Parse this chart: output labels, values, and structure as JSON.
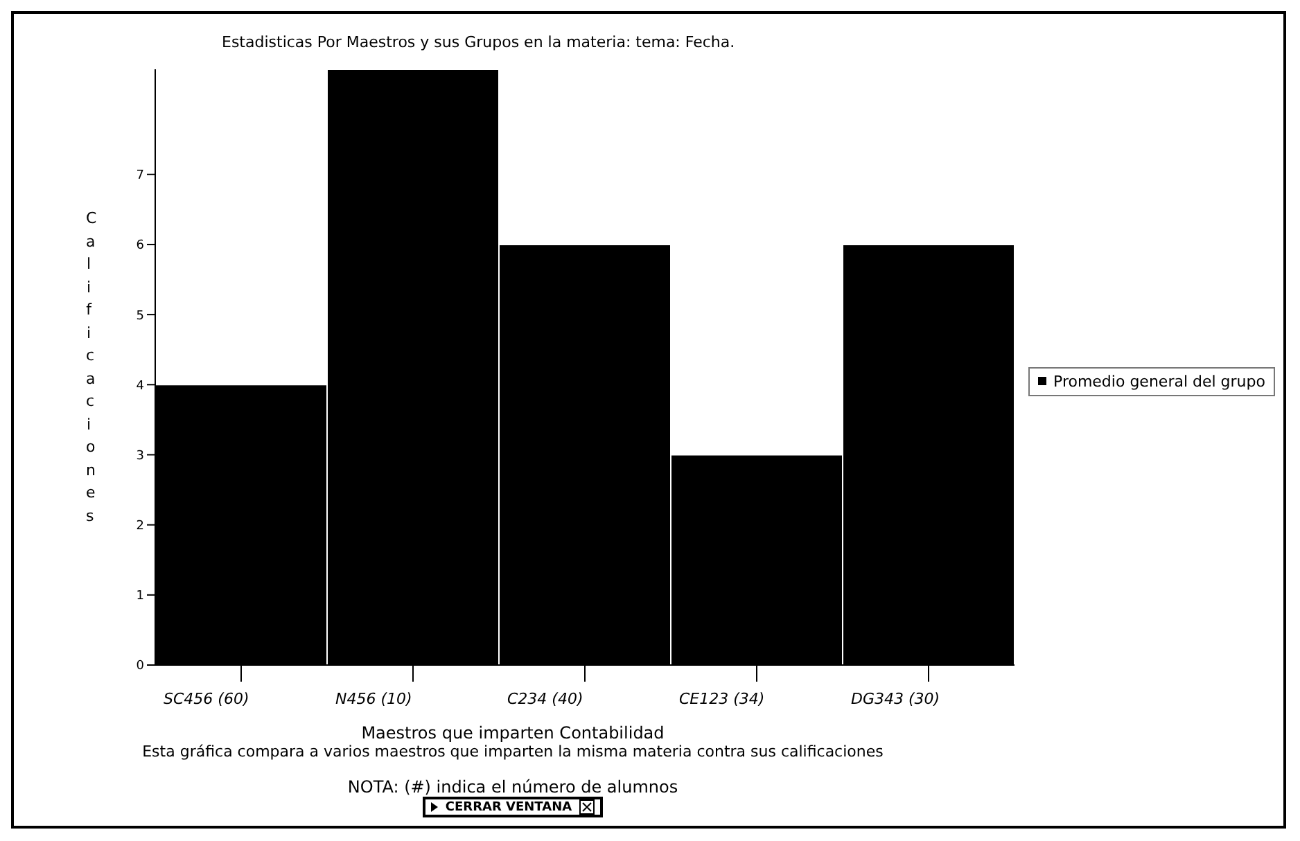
{
  "chart_data": {
    "type": "bar",
    "title": "Estadisticas Por Maestros y sus Grupos en la materia:  tema:  Fecha.",
    "xlabel": "Maestros que imparten Contabilidad",
    "ylabel": "Calificaciones",
    "categories": [
      "SC456 (60)",
      "N456 (10)",
      "C234 (40)",
      "CE123 (34)",
      "DG343 (30)"
    ],
    "series": [
      {
        "name": "Promedio general del grupo",
        "color": "#000000",
        "values": [
          4,
          8.5,
          6,
          3,
          6
        ]
      }
    ],
    "ylim": [
      0,
      8.5
    ],
    "yticks": [
      0,
      1,
      2,
      3,
      4,
      5,
      6,
      7
    ],
    "grid": false,
    "legend": "right",
    "annotations": [
      "Esta gráfica compara a varios maestros que imparten la misma materia contra sus calificaciones",
      "NOTA: (#) indica el número de alumnos",
      "CERRAR VENTANA"
    ]
  }
}
